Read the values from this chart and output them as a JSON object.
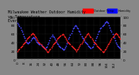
{
  "title": "Milwaukee Weather Outdoor Humidity vs Temperature Every 5 Minutes",
  "bg_color": "#888888",
  "plot_bg_color": "#000000",
  "humidity_color": "#4444ff",
  "temp_color": "#ff2222",
  "grid_color": "#444444",
  "ylim_left": [
    0,
    100
  ],
  "ylim_right": [
    0,
    100
  ],
  "legend_humidity_label": "Humidity",
  "legend_temp_label": "Outdoor Temp",
  "legend_bar_red": "#ff0000",
  "legend_bar_blue": "#0000ff",
  "title_fontsize": 3.5,
  "tick_fontsize": 3,
  "legend_fontsize": 3,
  "marker_size": 1.5,
  "humidity_data": [
    85,
    82,
    78,
    75,
    70,
    65,
    60,
    55,
    50,
    45,
    42,
    40,
    38,
    40,
    42,
    45,
    48,
    50,
    52,
    50,
    48,
    45,
    42,
    40,
    38,
    36,
    35,
    33,
    32,
    30,
    28,
    26,
    25,
    28,
    30,
    35,
    40,
    45,
    50,
    55,
    58,
    55,
    52,
    48,
    45,
    42,
    38,
    35,
    32,
    30,
    28,
    26,
    24,
    22,
    25,
    28,
    32,
    38,
    42,
    48,
    52,
    58,
    62,
    68,
    72,
    75,
    78,
    80,
    78,
    75,
    72,
    68,
    65,
    60,
    55,
    50,
    48,
    45,
    42,
    40,
    38,
    35,
    32,
    30,
    28,
    26,
    28,
    30,
    35,
    40,
    45,
    50,
    55,
    60,
    65,
    68,
    72,
    75,
    78,
    80,
    82,
    85,
    88,
    90,
    88,
    85,
    80,
    75,
    70,
    65,
    60,
    55,
    50,
    45,
    40,
    35,
    32,
    30,
    28,
    26
  ],
  "temp_data": [
    20,
    22,
    25,
    28,
    30,
    32,
    35,
    38,
    40,
    42,
    45,
    48,
    50,
    52,
    55,
    58,
    60,
    62,
    60,
    58,
    55,
    52,
    48,
    45,
    42,
    40,
    38,
    35,
    32,
    30,
    28,
    26,
    24,
    22,
    20,
    18,
    20,
    22,
    25,
    28,
    32,
    35,
    38,
    40,
    42,
    45,
    48,
    50,
    52,
    55,
    57,
    58,
    60,
    58,
    55,
    52,
    48,
    45,
    42,
    40,
    38,
    35,
    32,
    30,
    28,
    26,
    24,
    22,
    20,
    22,
    25,
    28,
    32,
    35,
    38,
    42,
    45,
    48,
    52,
    55,
    58,
    60,
    62,
    58,
    55,
    52,
    48,
    45,
    42,
    40,
    38,
    35,
    32,
    30,
    28,
    26,
    24,
    22,
    20,
    18,
    20,
    22,
    25,
    28,
    32,
    35,
    38,
    42,
    45,
    48,
    52,
    55,
    58,
    60,
    62,
    60,
    58,
    55,
    52,
    48
  ]
}
